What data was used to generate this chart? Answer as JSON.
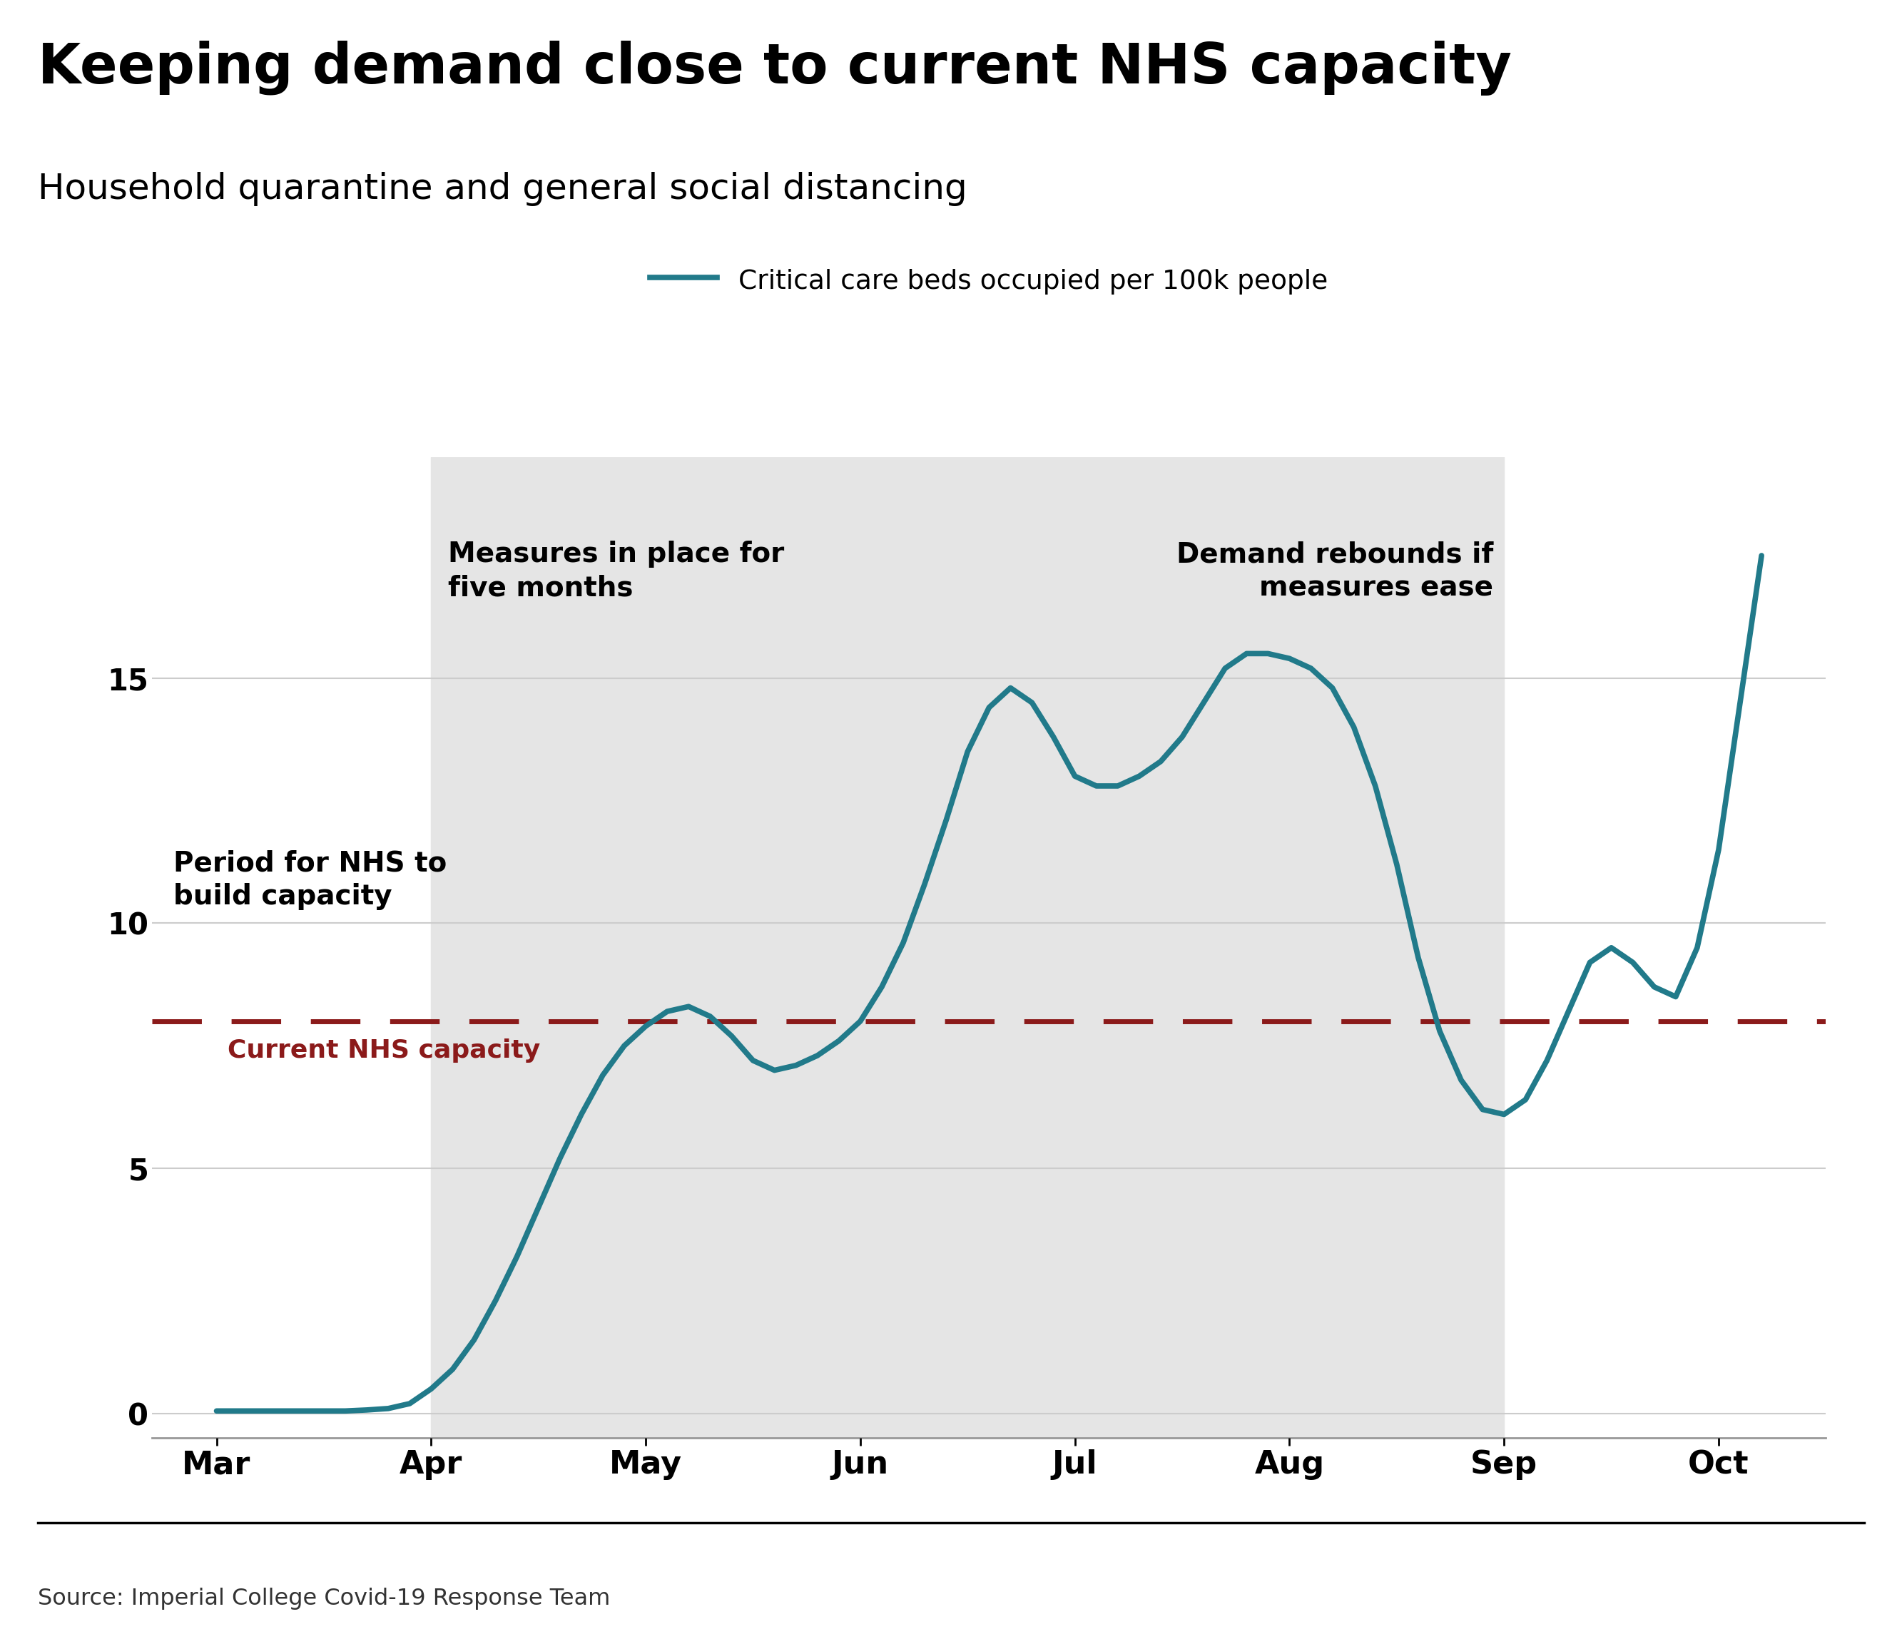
{
  "title": "Keeping demand close to current NHS capacity",
  "subtitle": "Household quarantine and general social distancing",
  "legend_label": "Critical care beds occupied per 100k people",
  "line_color": "#217a8a",
  "line_width": 5.5,
  "nhs_capacity_value": 8.0,
  "nhs_capacity_color": "#8b1a1a",
  "nhs_capacity_label": "Current NHS capacity",
  "shade_color": "#e5e5e5",
  "yticks": [
    0,
    5,
    10,
    15
  ],
  "xtick_labels": [
    "Mar",
    "Apr",
    "May",
    "Jun",
    "Jul",
    "Aug",
    "Sep",
    "Oct"
  ],
  "xtick_positions": [
    0,
    1,
    2,
    3,
    4,
    5,
    6,
    7
  ],
  "source_text": "Source: Imperial College Covid-19 Response Team",
  "annotation1_text": "Measures in place for\nfive months",
  "annotation2_text": "Demand rebounds if\nmeasures ease",
  "annotation3_text": "Period for NHS to\nbuild capacity",
  "x_data": [
    0.0,
    0.1,
    0.2,
    0.3,
    0.4,
    0.5,
    0.6,
    0.7,
    0.8,
    0.9,
    1.0,
    1.1,
    1.2,
    1.3,
    1.4,
    1.5,
    1.6,
    1.7,
    1.8,
    1.9,
    2.0,
    2.1,
    2.2,
    2.3,
    2.4,
    2.5,
    2.6,
    2.7,
    2.8,
    2.9,
    3.0,
    3.1,
    3.2,
    3.3,
    3.4,
    3.5,
    3.6,
    3.7,
    3.8,
    3.9,
    4.0,
    4.1,
    4.2,
    4.3,
    4.4,
    4.5,
    4.6,
    4.7,
    4.8,
    4.9,
    5.0,
    5.1,
    5.2,
    5.3,
    5.4,
    5.5,
    5.6,
    5.7,
    5.8,
    5.9,
    6.0,
    6.1,
    6.2,
    6.3,
    6.4,
    6.5,
    6.6,
    6.7,
    6.8,
    6.9,
    7.0,
    7.1,
    7.2
  ],
  "y_data": [
    0.05,
    0.05,
    0.05,
    0.05,
    0.05,
    0.05,
    0.05,
    0.07,
    0.1,
    0.2,
    0.5,
    0.9,
    1.5,
    2.3,
    3.2,
    4.2,
    5.2,
    6.1,
    6.9,
    7.5,
    7.9,
    8.2,
    8.3,
    8.1,
    7.7,
    7.2,
    7.0,
    7.1,
    7.3,
    7.6,
    8.0,
    8.7,
    9.6,
    10.8,
    12.1,
    13.5,
    14.4,
    14.8,
    14.5,
    13.8,
    13.0,
    12.8,
    12.8,
    13.0,
    13.3,
    13.8,
    14.5,
    15.2,
    15.5,
    15.5,
    15.4,
    15.2,
    14.8,
    14.0,
    12.8,
    11.2,
    9.3,
    7.8,
    6.8,
    6.2,
    6.1,
    6.4,
    7.2,
    8.2,
    9.2,
    9.5,
    9.2,
    8.7,
    8.5,
    9.5,
    11.5,
    14.5,
    17.5
  ],
  "shade_start": 1.0,
  "shade_end": 6.0,
  "ylim": [
    -0.5,
    19.5
  ],
  "xlim": [
    -0.3,
    7.5
  ]
}
